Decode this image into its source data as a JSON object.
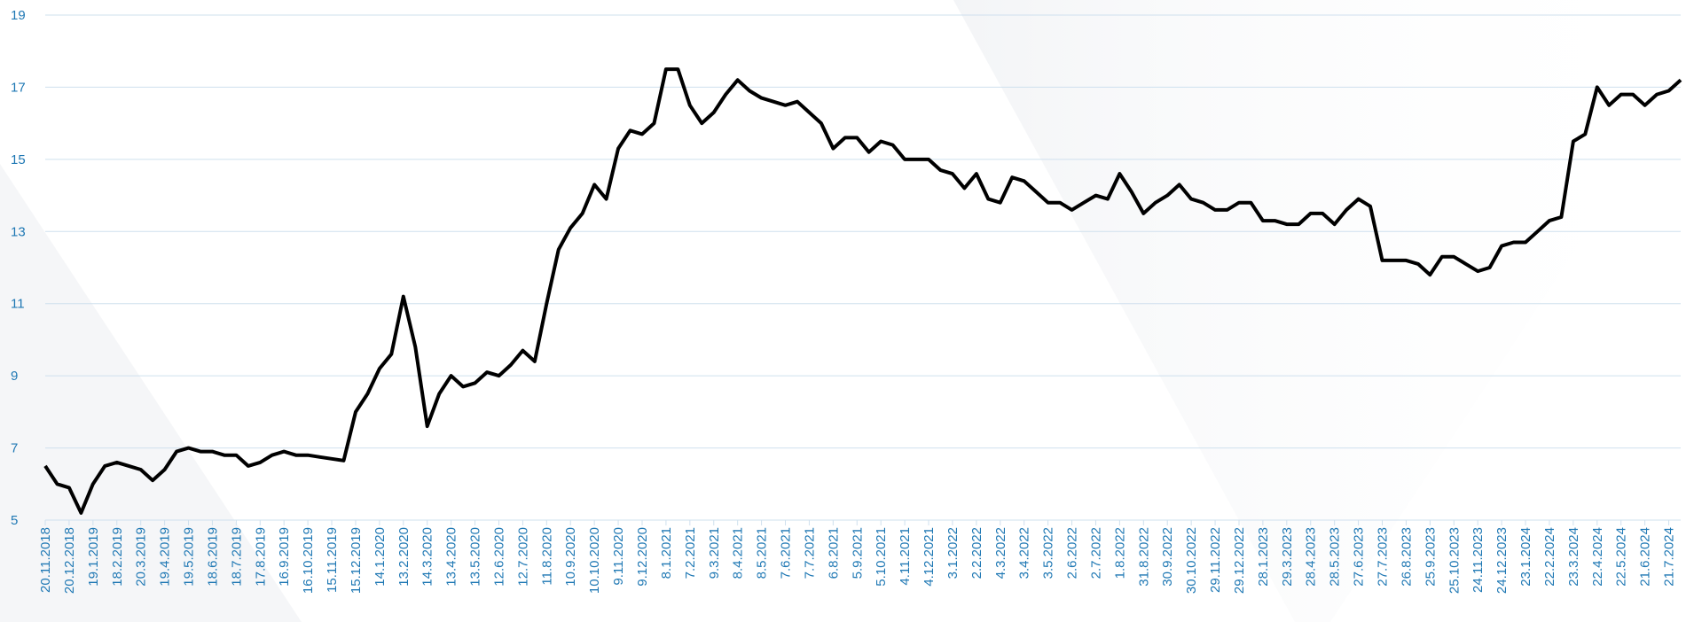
{
  "chart_data": {
    "type": "line",
    "categories": [
      "20.11.2018",
      null,
      "20.12.2018",
      null,
      "19.1.2019",
      null,
      "18.2.2019",
      null,
      "20.3.2019",
      null,
      "19.4.2019",
      null,
      "19.5.2019",
      null,
      "18.6.2019",
      null,
      "18.7.2019",
      null,
      "17.8.2019",
      null,
      "16.9.2019",
      null,
      "16.10.2019",
      null,
      "15.11.2019",
      null,
      "15.12.2019",
      null,
      "14.1.2020",
      null,
      "13.2.2020",
      null,
      "14.3.2020",
      null,
      "13.4.2020",
      null,
      "13.5.2020",
      null,
      "12.6.2020",
      null,
      "12.7.2020",
      null,
      "11.8.2020",
      null,
      "10.9.2020",
      null,
      "10.10.2020",
      null,
      "9.11.2020",
      null,
      "9.12.2020",
      null,
      "8.1.2021",
      null,
      "7.2.2021",
      null,
      "9.3.2021",
      null,
      "8.4.2021",
      null,
      "8.5.2021",
      null,
      "7.6.2021",
      null,
      "7.7.2021",
      null,
      "6.8.2021",
      null,
      "5.9.2021",
      null,
      "5.10.2021",
      null,
      "4.11.2021",
      null,
      "4.12.2021",
      null,
      "3.1.2022",
      null,
      "2.2.2022",
      null,
      "4.3.2022",
      null,
      "3.4.2022",
      null,
      "3.5.2022",
      null,
      "2.6.2022",
      null,
      "2.7.2022",
      null,
      "1.8.2022",
      null,
      "31.8.2022",
      null,
      "30.9.2022",
      null,
      "30.10.2022",
      null,
      "29.11.2022",
      null,
      "29.12.2022",
      null,
      "28.1.2023",
      null,
      "29.3.2023",
      null,
      "28.4.2023",
      null,
      "28.5.2023",
      null,
      "27.6.2023",
      null,
      "27.7.2023",
      null,
      "26.8.2023",
      null,
      "25.9.2023",
      null,
      "25.10.2023",
      null,
      "24.11.2023",
      null,
      "24.12.2023",
      null,
      "23.1.2024",
      null,
      "22.2.2024",
      null,
      "23.3.2024",
      null,
      "22.4.2024",
      null,
      "22.5.2024",
      null,
      "21.6.2024",
      null,
      "21.7.2024",
      null
    ],
    "values": [
      6.5,
      6.0,
      5.9,
      5.2,
      6.0,
      6.5,
      6.6,
      6.5,
      6.4,
      6.1,
      6.4,
      6.9,
      7.0,
      6.9,
      6.9,
      6.8,
      6.8,
      6.5,
      6.6,
      6.8,
      6.9,
      6.8,
      6.8,
      6.75,
      6.7,
      6.65,
      8.0,
      8.5,
      9.2,
      9.6,
      11.2,
      9.8,
      7.6,
      8.5,
      9.0,
      8.7,
      8.8,
      9.1,
      9.0,
      9.3,
      9.7,
      9.4,
      11.0,
      12.5,
      13.1,
      13.5,
      14.3,
      13.9,
      15.3,
      15.8,
      15.7,
      16.0,
      17.5,
      17.5,
      16.5,
      16.0,
      16.3,
      16.8,
      17.2,
      16.9,
      16.7,
      16.6,
      16.5,
      16.6,
      16.3,
      16.0,
      15.3,
      15.6,
      15.6,
      15.2,
      15.5,
      15.4,
      15.0,
      15.0,
      15.0,
      14.7,
      14.6,
      14.2,
      14.6,
      13.9,
      13.8,
      14.5,
      14.4,
      14.1,
      13.8,
      13.8,
      13.6,
      13.8,
      14.0,
      13.9,
      14.6,
      14.1,
      13.5,
      13.8,
      14.0,
      14.3,
      13.9,
      13.8,
      13.6,
      13.6,
      13.8,
      13.8,
      13.3,
      13.3,
      13.2,
      13.2,
      13.5,
      13.5,
      13.2,
      13.6,
      13.9,
      13.7,
      12.2,
      12.2,
      12.2,
      12.1,
      11.8,
      12.3,
      12.3,
      12.1,
      11.9,
      12.0,
      12.6,
      12.7,
      12.7,
      13.0,
      13.3,
      13.4,
      15.5,
      15.7,
      17.0,
      16.5,
      16.8,
      16.8,
      16.5,
      16.8,
      16.9,
      17.2
    ],
    "color": "#000000",
    "ylim": [
      5,
      19
    ],
    "yticks": [
      5,
      7,
      9,
      11,
      13,
      15,
      17,
      19
    ],
    "grid": true
  }
}
